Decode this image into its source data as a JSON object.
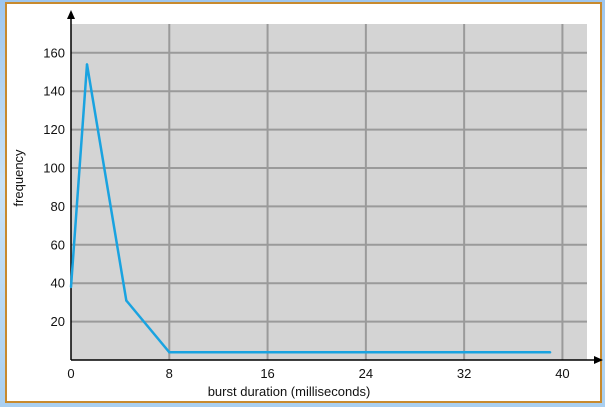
{
  "colors": {
    "plot_background": "#d4d4d4",
    "grid": "#9a9a9a",
    "line": "#1aa3e0",
    "frame_border": "#c88a2e",
    "axis": "#000000"
  },
  "chart_data": {
    "type": "line",
    "title": "",
    "xlabel": "burst duration (milliseconds)",
    "ylabel": "frequency",
    "xlim": [
      0,
      42
    ],
    "ylim": [
      0,
      175
    ],
    "x_ticks": [
      0,
      8,
      16,
      24,
      32,
      40
    ],
    "y_ticks": [
      20,
      40,
      60,
      80,
      100,
      120,
      140,
      160
    ],
    "grid": true,
    "legend": "none",
    "series": [
      {
        "x": [
          0,
          1.3,
          4.5,
          8,
          39
        ],
        "values": [
          38,
          154,
          31,
          4,
          4
        ]
      }
    ]
  }
}
